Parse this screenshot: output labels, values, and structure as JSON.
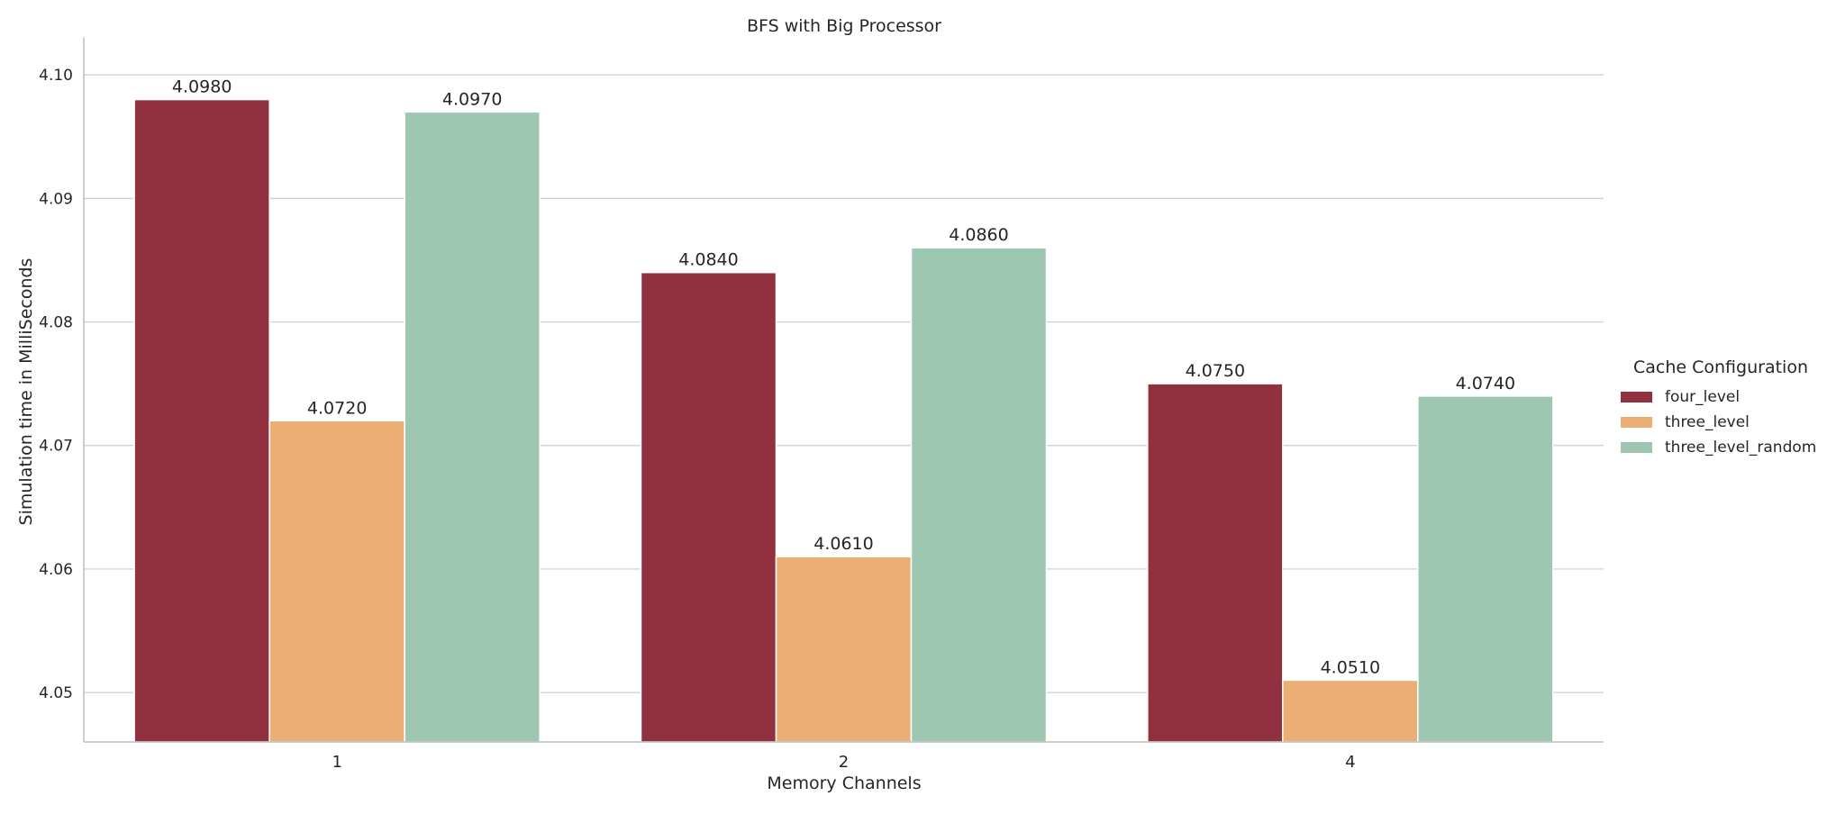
{
  "chart_data": {
    "type": "bar",
    "title": "BFS with Big Processor",
    "xlabel": "Memory Channels",
    "ylabel": "Simulation time in MilliSeconds",
    "categories": [
      "1",
      "2",
      "4"
    ],
    "series": [
      {
        "name": "four_level",
        "values": [
          4.098,
          4.084,
          4.075
        ],
        "labels": [
          "4.0980",
          "4.0840",
          "4.0750"
        ],
        "color": "#91313f"
      },
      {
        "name": "three_level",
        "values": [
          4.072,
          4.061,
          4.051
        ],
        "labels": [
          "4.0720",
          "4.0610",
          "4.0510"
        ],
        "color": "#ebae74"
      },
      {
        "name": "three_level_random",
        "values": [
          4.097,
          4.086,
          4.074
        ],
        "labels": [
          "4.0970",
          "4.0860",
          "4.0740"
        ],
        "color": "#9ec7b2"
      }
    ],
    "ylim": [
      4.046,
      4.103
    ],
    "yticks": [
      4.05,
      4.06,
      4.07,
      4.08,
      4.09,
      4.1
    ],
    "ytick_labels": [
      "4.05",
      "4.06",
      "4.07",
      "4.08",
      "4.09",
      "4.10"
    ],
    "grid": "horizontal",
    "legend": {
      "title": "Cache Configuration",
      "placement": "right-center"
    }
  }
}
